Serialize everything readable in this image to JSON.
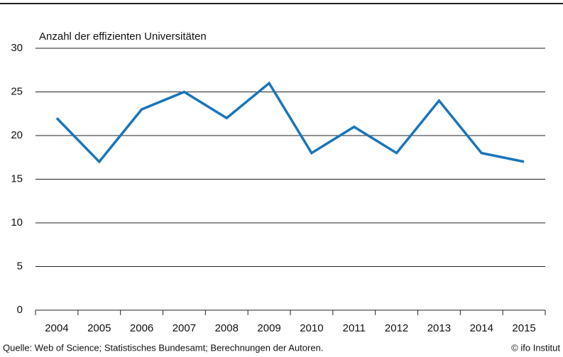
{
  "chart_data": {
    "type": "line",
    "y_label": "Anzahl der effizienten Universitäten",
    "categories": [
      "2004",
      "2005",
      "2006",
      "2007",
      "2008",
      "2009",
      "2010",
      "2011",
      "2012",
      "2013",
      "2014",
      "2015"
    ],
    "series": [
      {
        "name": "Anzahl der effizienten Universitäten",
        "color": "#1a75bb",
        "values": [
          22,
          17,
          23,
          25,
          22,
          26,
          18,
          21,
          18,
          24,
          18,
          17
        ]
      }
    ],
    "ylim": [
      0,
      30
    ],
    "yticks": [
      0,
      5,
      10,
      15,
      20,
      25,
      30
    ],
    "grid": true,
    "source": "Quelle: Web of Science; Statistisches Bundesamt; Berechnungen der Autoren.",
    "credit": "© ifo Institut"
  }
}
